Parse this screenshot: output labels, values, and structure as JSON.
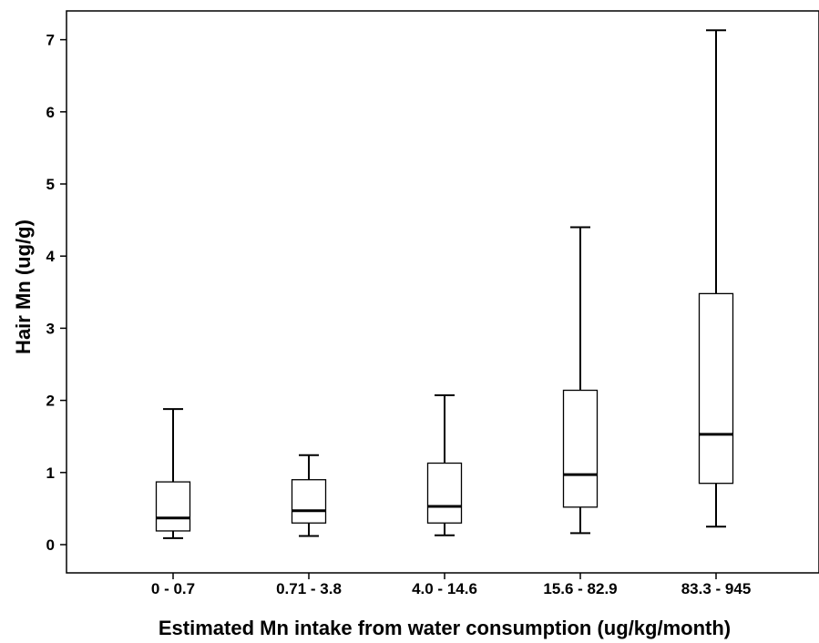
{
  "chart_data": {
    "type": "boxplot",
    "title": "",
    "xlabel": "Estimated Mn intake from water consumption (ug/kg/month)",
    "ylabel": "Hair Mn (ug/g)",
    "ylim": [
      -0.4,
      7.4
    ],
    "yticks": [
      0,
      1,
      2,
      3,
      4,
      5,
      6,
      7
    ],
    "grid": false,
    "categories": [
      "0 - 0.7",
      "0.71 - 3.8",
      "4.0 - 14.6",
      "15.6 - 82.9",
      "83.3 - 945"
    ],
    "boxes": [
      {
        "category": "0 - 0.7",
        "min": 0.09,
        "q1": 0.19,
        "median": 0.37,
        "q3": 0.87,
        "max": 1.88
      },
      {
        "category": "0.71 - 3.8",
        "min": 0.12,
        "q1": 0.3,
        "median": 0.47,
        "q3": 0.9,
        "max": 1.24
      },
      {
        "category": "4.0 - 14.6",
        "min": 0.13,
        "q1": 0.3,
        "median": 0.53,
        "q3": 1.13,
        "max": 2.07
      },
      {
        "category": "15.6 - 82.9",
        "min": 0.16,
        "q1": 0.52,
        "median": 0.97,
        "q3": 2.14,
        "max": 4.4
      },
      {
        "category": "83.3 - 945",
        "min": 0.25,
        "q1": 0.85,
        "median": 1.53,
        "q3": 3.48,
        "max": 7.13
      }
    ],
    "colors": {
      "box_fill": "#ffffff",
      "line": "#000000"
    }
  }
}
